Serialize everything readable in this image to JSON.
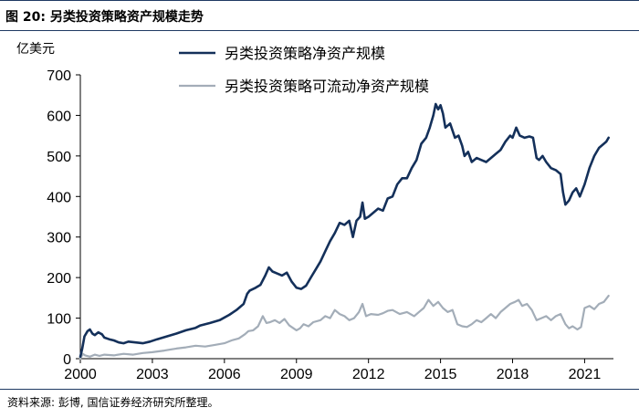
{
  "figure": {
    "title": "图 20:  另类投资策略资产规模走势",
    "source": "资料来源:  彭博,  国信证券经济研究所整理。"
  },
  "chart_data": {
    "type": "line",
    "ylabel": "亿美元",
    "ylim": [
      0,
      700
    ],
    "yticks": [
      0,
      100,
      200,
      300,
      400,
      500,
      600,
      700
    ],
    "xlim": [
      2000,
      2022.2
    ],
    "xticks": [
      2000,
      2003,
      2006,
      2009,
      2012,
      2015,
      2018,
      2021
    ],
    "xtick_labels": [
      "2000",
      "2003",
      "2006",
      "2009",
      "2012",
      "2015",
      "2018",
      "2021"
    ],
    "legend_position": "top-center",
    "grid": false,
    "series": [
      {
        "name": "另类投资策略净资产规模",
        "color": "#14305a",
        "points": [
          [
            2000.0,
            5
          ],
          [
            2000.08,
            25
          ],
          [
            2000.17,
            55
          ],
          [
            2000.3,
            68
          ],
          [
            2000.4,
            72
          ],
          [
            2000.5,
            62
          ],
          [
            2000.6,
            58
          ],
          [
            2000.75,
            65
          ],
          [
            2000.9,
            60
          ],
          [
            2001.0,
            52
          ],
          [
            2001.2,
            48
          ],
          [
            2001.4,
            45
          ],
          [
            2001.6,
            40
          ],
          [
            2001.8,
            38
          ],
          [
            2002.0,
            42
          ],
          [
            2002.3,
            40
          ],
          [
            2002.6,
            38
          ],
          [
            2002.9,
            42
          ],
          [
            2003.2,
            48
          ],
          [
            2003.6,
            55
          ],
          [
            2004.0,
            62
          ],
          [
            2004.4,
            70
          ],
          [
            2004.8,
            76
          ],
          [
            2005.0,
            82
          ],
          [
            2005.4,
            88
          ],
          [
            2005.8,
            95
          ],
          [
            2006.2,
            108
          ],
          [
            2006.5,
            120
          ],
          [
            2006.8,
            135
          ],
          [
            2006.95,
            160
          ],
          [
            2007.05,
            168
          ],
          [
            2007.3,
            175
          ],
          [
            2007.5,
            182
          ],
          [
            2007.7,
            205
          ],
          [
            2007.85,
            225
          ],
          [
            2008.0,
            215
          ],
          [
            2008.2,
            210
          ],
          [
            2008.4,
            205
          ],
          [
            2008.6,
            212
          ],
          [
            2008.8,
            190
          ],
          [
            2009.0,
            175
          ],
          [
            2009.2,
            172
          ],
          [
            2009.4,
            180
          ],
          [
            2009.6,
            200
          ],
          [
            2009.8,
            220
          ],
          [
            2010.0,
            240
          ],
          [
            2010.2,
            265
          ],
          [
            2010.4,
            290
          ],
          [
            2010.6,
            310
          ],
          [
            2010.8,
            335
          ],
          [
            2011.0,
            330
          ],
          [
            2011.2,
            340
          ],
          [
            2011.35,
            300
          ],
          [
            2011.5,
            340
          ],
          [
            2011.65,
            350
          ],
          [
            2011.75,
            385
          ],
          [
            2011.85,
            345
          ],
          [
            2012.0,
            350
          ],
          [
            2012.2,
            360
          ],
          [
            2012.4,
            370
          ],
          [
            2012.6,
            365
          ],
          [
            2012.8,
            395
          ],
          [
            2013.0,
            400
          ],
          [
            2013.2,
            430
          ],
          [
            2013.4,
            445
          ],
          [
            2013.6,
            445
          ],
          [
            2013.8,
            470
          ],
          [
            2014.0,
            490
          ],
          [
            2014.2,
            530
          ],
          [
            2014.4,
            545
          ],
          [
            2014.55,
            570
          ],
          [
            2014.7,
            600
          ],
          [
            2014.8,
            628
          ],
          [
            2014.9,
            615
          ],
          [
            2015.0,
            625
          ],
          [
            2015.1,
            605
          ],
          [
            2015.2,
            570
          ],
          [
            2015.4,
            580
          ],
          [
            2015.6,
            545
          ],
          [
            2015.75,
            550
          ],
          [
            2015.9,
            525
          ],
          [
            2016.0,
            500
          ],
          [
            2016.15,
            510
          ],
          [
            2016.3,
            485
          ],
          [
            2016.5,
            495
          ],
          [
            2016.7,
            490
          ],
          [
            2016.9,
            485
          ],
          [
            2017.1,
            495
          ],
          [
            2017.3,
            505
          ],
          [
            2017.5,
            515
          ],
          [
            2017.7,
            535
          ],
          [
            2017.9,
            550
          ],
          [
            2018.0,
            545
          ],
          [
            2018.15,
            570
          ],
          [
            2018.3,
            550
          ],
          [
            2018.5,
            545
          ],
          [
            2018.7,
            548
          ],
          [
            2018.85,
            545
          ],
          [
            2019.0,
            495
          ],
          [
            2019.1,
            490
          ],
          [
            2019.25,
            500
          ],
          [
            2019.4,
            485
          ],
          [
            2019.6,
            470
          ],
          [
            2019.8,
            465
          ],
          [
            2020.0,
            455
          ],
          [
            2020.1,
            410
          ],
          [
            2020.2,
            380
          ],
          [
            2020.35,
            390
          ],
          [
            2020.5,
            410
          ],
          [
            2020.65,
            420
          ],
          [
            2020.8,
            400
          ],
          [
            2021.0,
            430
          ],
          [
            2021.2,
            470
          ],
          [
            2021.4,
            500
          ],
          [
            2021.6,
            520
          ],
          [
            2021.8,
            530
          ],
          [
            2021.9,
            535
          ],
          [
            2022.0,
            545
          ]
        ]
      },
      {
        "name": "另类投资策略可流动净资产规模",
        "color": "#a3adb8",
        "points": [
          [
            2000.0,
            0
          ],
          [
            2000.1,
            12
          ],
          [
            2000.2,
            8
          ],
          [
            2000.4,
            5
          ],
          [
            2000.6,
            10
          ],
          [
            2000.8,
            7
          ],
          [
            2001.0,
            10
          ],
          [
            2001.4,
            8
          ],
          [
            2001.8,
            12
          ],
          [
            2002.2,
            10
          ],
          [
            2002.6,
            14
          ],
          [
            2003.0,
            16
          ],
          [
            2003.5,
            20
          ],
          [
            2004.0,
            25
          ],
          [
            2004.4,
            28
          ],
          [
            2004.8,
            32
          ],
          [
            2005.2,
            30
          ],
          [
            2005.6,
            34
          ],
          [
            2006.0,
            38
          ],
          [
            2006.3,
            45
          ],
          [
            2006.6,
            50
          ],
          [
            2006.85,
            60
          ],
          [
            2007.0,
            68
          ],
          [
            2007.2,
            70
          ],
          [
            2007.4,
            80
          ],
          [
            2007.6,
            105
          ],
          [
            2007.75,
            88
          ],
          [
            2007.9,
            90
          ],
          [
            2008.1,
            95
          ],
          [
            2008.3,
            88
          ],
          [
            2008.5,
            98
          ],
          [
            2008.7,
            82
          ],
          [
            2009.0,
            70
          ],
          [
            2009.15,
            75
          ],
          [
            2009.3,
            85
          ],
          [
            2009.5,
            80
          ],
          [
            2009.7,
            90
          ],
          [
            2010.0,
            95
          ],
          [
            2010.2,
            105
          ],
          [
            2010.4,
            100
          ],
          [
            2010.6,
            120
          ],
          [
            2010.8,
            110
          ],
          [
            2011.0,
            105
          ],
          [
            2011.2,
            95
          ],
          [
            2011.4,
            100
          ],
          [
            2011.6,
            115
          ],
          [
            2011.75,
            135
          ],
          [
            2011.9,
            105
          ],
          [
            2012.1,
            110
          ],
          [
            2012.4,
            108
          ],
          [
            2012.6,
            112
          ],
          [
            2012.8,
            118
          ],
          [
            2013.0,
            120
          ],
          [
            2013.3,
            110
          ],
          [
            2013.6,
            115
          ],
          [
            2013.9,
            105
          ],
          [
            2014.1,
            115
          ],
          [
            2014.3,
            125
          ],
          [
            2014.5,
            145
          ],
          [
            2014.7,
            130
          ],
          [
            2014.9,
            140
          ],
          [
            2015.1,
            125
          ],
          [
            2015.3,
            115
          ],
          [
            2015.5,
            120
          ],
          [
            2015.7,
            85
          ],
          [
            2015.9,
            80
          ],
          [
            2016.1,
            78
          ],
          [
            2016.3,
            85
          ],
          [
            2016.5,
            95
          ],
          [
            2016.7,
            90
          ],
          [
            2016.9,
            100
          ],
          [
            2017.1,
            110
          ],
          [
            2017.3,
            100
          ],
          [
            2017.5,
            115
          ],
          [
            2017.7,
            125
          ],
          [
            2017.9,
            135
          ],
          [
            2018.1,
            140
          ],
          [
            2018.25,
            145
          ],
          [
            2018.4,
            130
          ],
          [
            2018.6,
            135
          ],
          [
            2018.8,
            120
          ],
          [
            2019.0,
            95
          ],
          [
            2019.2,
            100
          ],
          [
            2019.4,
            105
          ],
          [
            2019.6,
            95
          ],
          [
            2019.8,
            105
          ],
          [
            2020.0,
            110
          ],
          [
            2020.2,
            85
          ],
          [
            2020.35,
            75
          ],
          [
            2020.5,
            80
          ],
          [
            2020.7,
            72
          ],
          [
            2020.85,
            78
          ],
          [
            2021.0,
            125
          ],
          [
            2021.2,
            130
          ],
          [
            2021.4,
            122
          ],
          [
            2021.6,
            135
          ],
          [
            2021.8,
            140
          ],
          [
            2022.0,
            155
          ]
        ]
      }
    ]
  }
}
